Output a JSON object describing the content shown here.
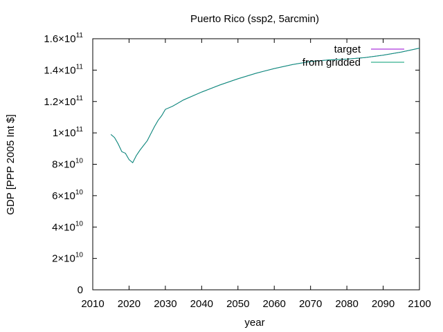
{
  "chart_data": {
    "type": "line",
    "title": "Puerto Rico (ssp2, 5arcmin)",
    "xlabel": "year",
    "ylabel": "GDP [PPP 2005 Int $]",
    "xlim": [
      2010,
      2100
    ],
    "ylim": [
      0,
      160000000000
    ],
    "x_ticks": [
      2010,
      2020,
      2030,
      2040,
      2050,
      2060,
      2070,
      2080,
      2090,
      2100
    ],
    "y_ticks": [
      {
        "value": 0,
        "mantissa": "0",
        "exponent": ""
      },
      {
        "value": 20000000000,
        "mantissa": "2×10",
        "exponent": "10"
      },
      {
        "value": 40000000000,
        "mantissa": "4×10",
        "exponent": "10"
      },
      {
        "value": 60000000000,
        "mantissa": "6×10",
        "exponent": "10"
      },
      {
        "value": 80000000000,
        "mantissa": "8×10",
        "exponent": "10"
      },
      {
        "value": 100000000000,
        "mantissa": "1×10",
        "exponent": "11"
      },
      {
        "value": 120000000000,
        "mantissa": "1.2×10",
        "exponent": "11"
      },
      {
        "value": 140000000000,
        "mantissa": "1.4×10",
        "exponent": "11"
      },
      {
        "value": 160000000000,
        "mantissa": "1.6×10",
        "exponent": "11"
      }
    ],
    "grid": false,
    "legend_position": "top-right",
    "x": [
      2015,
      2016,
      2017,
      2018,
      2019,
      2020,
      2021,
      2022,
      2023,
      2024,
      2025,
      2026,
      2027,
      2028,
      2029,
      2030,
      2032,
      2035,
      2040,
      2045,
      2050,
      2055,
      2060,
      2065,
      2070,
      2075,
      2080,
      2085,
      2090,
      2095,
      2100
    ],
    "series": [
      {
        "name": "target",
        "color": "#9400d3",
        "values": [
          99000000000,
          97000000000,
          93000000000,
          88000000000,
          87000000000,
          83000000000,
          81000000000,
          85500000000,
          89000000000,
          92000000000,
          95000000000,
          99500000000,
          104000000000,
          108000000000,
          111000000000,
          115000000000,
          117000000000,
          121000000000,
          126000000000,
          130500000000,
          134500000000,
          138000000000,
          141000000000,
          143500000000,
          145500000000,
          146500000000,
          147000000000,
          148000000000,
          149500000000,
          151500000000,
          154000000000
        ]
      },
      {
        "name": "from gridded",
        "color": "#009e73",
        "values": [
          99000000000,
          97000000000,
          93000000000,
          88000000000,
          87000000000,
          83000000000,
          81000000000,
          85500000000,
          89000000000,
          92000000000,
          95000000000,
          99500000000,
          104000000000,
          108000000000,
          111000000000,
          115000000000,
          117000000000,
          121000000000,
          126000000000,
          130500000000,
          134500000000,
          138000000000,
          141000000000,
          143500000000,
          145500000000,
          146500000000,
          147000000000,
          148000000000,
          149500000000,
          151500000000,
          154000000000
        ]
      }
    ]
  }
}
